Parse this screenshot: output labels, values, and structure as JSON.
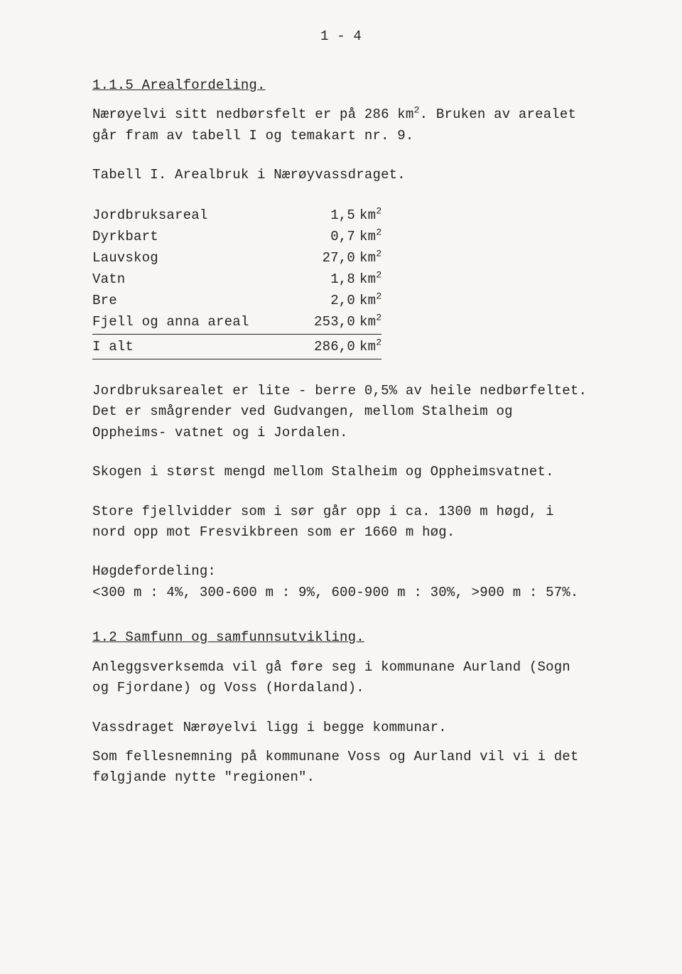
{
  "page_number": "1 - 4",
  "heading1": "1.1.5 Arealfordeling.",
  "intro_a": "Nærøyelvi sitt nedbørsfelt er på 286 km",
  "intro_sup": "2",
  "intro_b": ". Bruken av arealet går fram av tabell I og temakart nr. 9.",
  "table_caption": "Tabell I. Arealbruk i Nærøyvassdraget.",
  "unit_base": "km",
  "unit_sup": "2",
  "table_rows": [
    {
      "label": "Jordbruksareal",
      "value": "1,5"
    },
    {
      "label": "Dyrkbart",
      "value": "0,7"
    },
    {
      "label": "Lauvskog",
      "value": "27,0"
    },
    {
      "label": "Vatn",
      "value": "1,8"
    },
    {
      "label": "Bre",
      "value": "2,0"
    },
    {
      "label": "Fjell og anna areal",
      "value": "253,0"
    }
  ],
  "table_total_label": "I alt",
  "table_total_value": "286,0",
  "para1": "Jordbruksarealet er lite - berre 0,5% av heile nedbørfeltet. Det er smågrender ved Gudvangen, mellom Stalheim og Oppheims- vatnet og i Jordalen.",
  "para2": "Skogen i størst mengd mellom Stalheim og Oppheimsvatnet.",
  "para3": "Store fjellvidder som i sør går opp i ca. 1300 m høgd, i nord opp mot Fresvikbreen som er 1660 m høg.",
  "hogde_label": "Høgdefordeling:",
  "hogde_values": "<300 m : 4%, 300-600 m : 9%, 600-900 m : 30%, >900 m : 57%.",
  "heading2": "1.2 Samfunn og samfunnsutvikling.",
  "para4": "Anleggsverksemda vil gå føre seg i kommunane Aurland (Sogn og Fjordane) og Voss (Hordaland).",
  "para5": "Vassdraget Nærøyelvi ligg i begge kommunar.",
  "para6": "Som fellesnemning på kommunane Voss og Aurland vil vi i det følgjande nytte \"regionen\"."
}
